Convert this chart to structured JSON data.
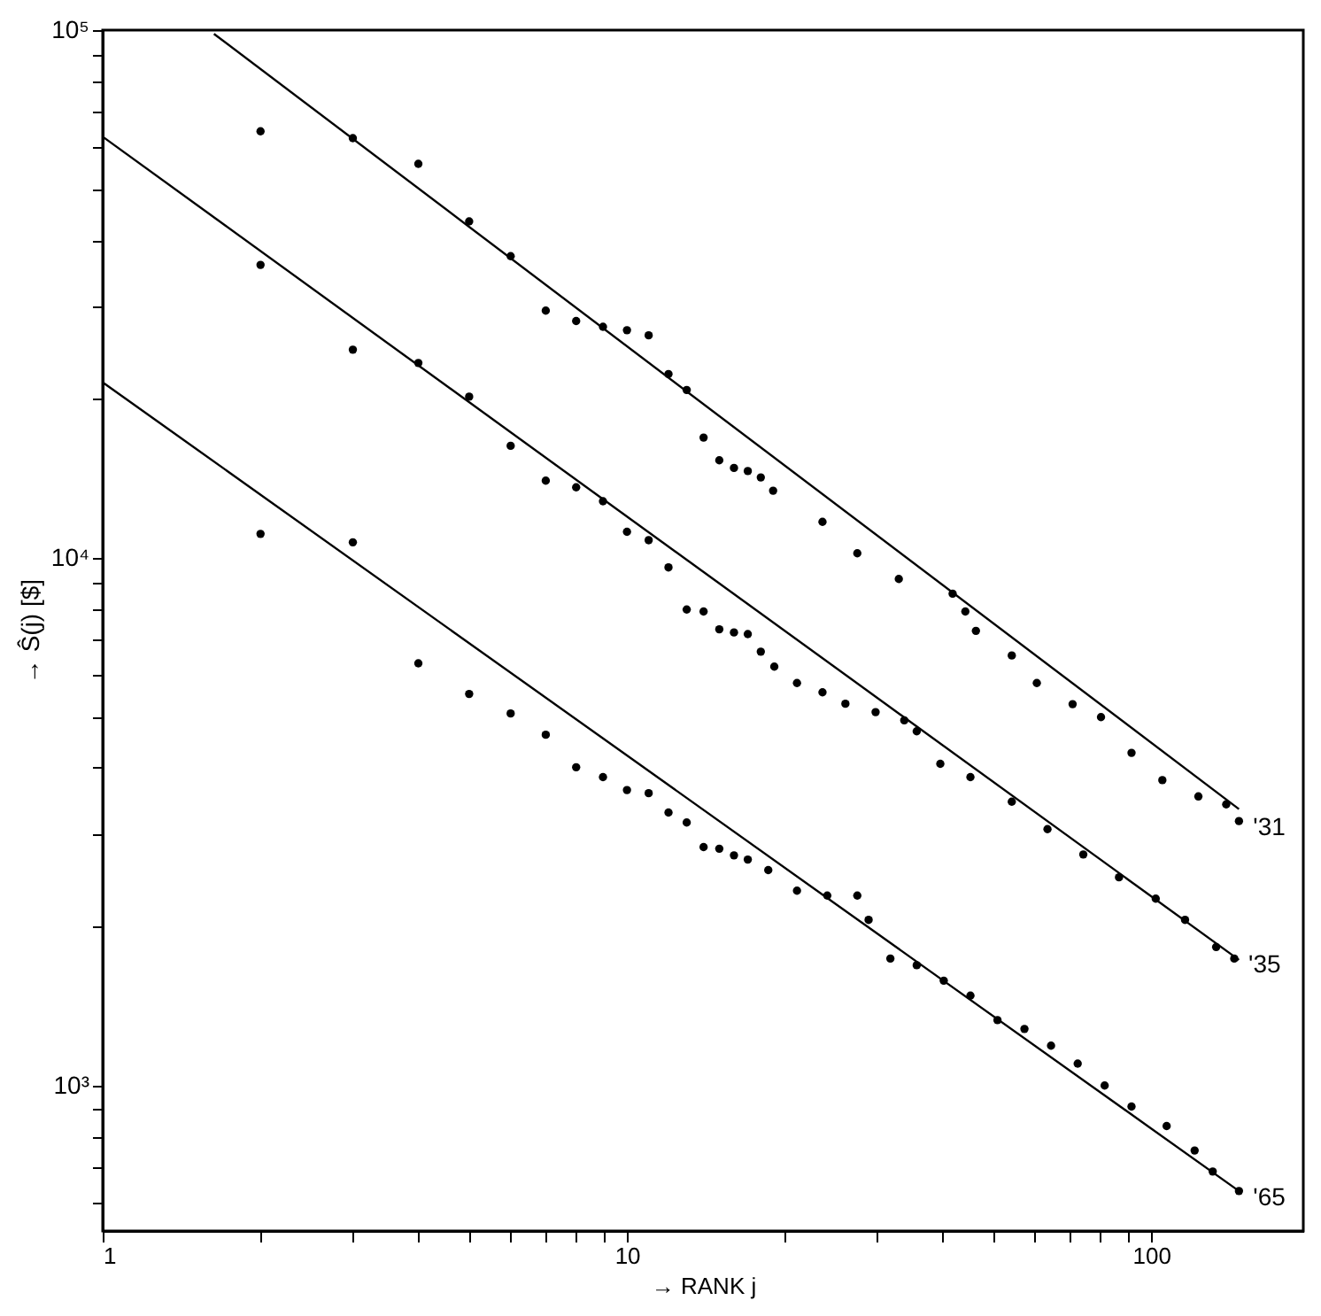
{
  "chart_data": {
    "type": "scatter",
    "xlabel": "→ RANK j",
    "ylabel": "→ Ŝ(j)   [$]",
    "log": "xy",
    "grid": false,
    "xlim": [
      1,
      195
    ],
    "ylim": [
      530,
      100000
    ],
    "xticks": [
      1,
      {
        "value": 2,
        "label": null
      },
      {
        "value": 3,
        "label": null
      },
      {
        "value": 4,
        "label": null
      },
      {
        "value": 5,
        "label": null
      },
      {
        "value": 6,
        "label": null
      },
      {
        "value": 7,
        "label": null
      },
      {
        "value": 8,
        "label": null
      },
      {
        "value": 9,
        "label": null
      },
      10,
      {
        "value": 20,
        "label": null
      },
      {
        "value": 30,
        "label": null
      },
      {
        "value": 40,
        "label": null
      },
      {
        "value": 50,
        "label": null
      },
      {
        "value": 60,
        "label": null
      },
      {
        "value": 70,
        "label": null
      },
      {
        "value": 80,
        "label": null
      },
      {
        "value": 90,
        "label": null
      },
      100
    ],
    "yticks": [
      {
        "value": 600,
        "label": null
      },
      {
        "value": 700,
        "label": null
      },
      {
        "value": 800,
        "label": null
      },
      {
        "value": 900,
        "label": null
      },
      {
        "value": 1000,
        "label": "10³"
      },
      {
        "value": 2000,
        "label": null
      },
      {
        "value": 3000,
        "label": null
      },
      {
        "value": 4000,
        "label": null
      },
      {
        "value": 5000,
        "label": null
      },
      {
        "value": 6000,
        "label": null
      },
      {
        "value": 7000,
        "label": null
      },
      {
        "value": 8000,
        "label": null
      },
      {
        "value": 9000,
        "label": null
      },
      {
        "value": 10000,
        "label": "10⁴"
      },
      {
        "value": 20000,
        "label": null
      },
      {
        "value": 30000,
        "label": null
      },
      {
        "value": 40000,
        "label": null
      },
      {
        "value": 50000,
        "label": null
      },
      {
        "value": 60000,
        "label": null
      },
      {
        "value": 70000,
        "label": null
      },
      {
        "value": 80000,
        "label": null
      },
      {
        "value": 90000,
        "label": null
      },
      {
        "value": 100000,
        "label": "10⁵"
      }
    ],
    "series": [
      {
        "marker": "circle",
        "name": "'31",
        "color": "#000000",
        "x": [
          2,
          3,
          4,
          5,
          6,
          7,
          8,
          9,
          10,
          11,
          12,
          13,
          14,
          15,
          16,
          17,
          18,
          19,
          23.6,
          27.5,
          33,
          41.8,
          44.2,
          46.3,
          54.2,
          60.5,
          70.8,
          80.2,
          91.7,
          105,
          123,
          139,
          147
        ],
        "values": [
          64300,
          62400,
          55800,
          43400,
          37300,
          29400,
          28100,
          27400,
          27000,
          26400,
          22300,
          20800,
          16900,
          15300,
          14800,
          14600,
          14200,
          13400,
          11700,
          10200,
          9120,
          8550,
          7910,
          7270,
          6530,
          5790,
          5280,
          4990,
          4270,
          3790,
          3530,
          3410,
          3170
        ]
      },
      {
        "marker": "circle",
        "name": "'35",
        "color": "#000000",
        "x": [
          2,
          3,
          4,
          5,
          6,
          7,
          8,
          9,
          10,
          11,
          12,
          13,
          14,
          15,
          16,
          17,
          18,
          19.1,
          21.1,
          23.6,
          26.1,
          29.8,
          33.8,
          35.7,
          39.6,
          45.2,
          54.2,
          63.4,
          74.2,
          86.8,
          102,
          116,
          133,
          144
        ],
        "values": [
          35900,
          24800,
          23400,
          20200,
          16300,
          14000,
          13600,
          12800,
          11200,
          10800,
          9590,
          7980,
          7910,
          7320,
          7220,
          7170,
          6640,
          6220,
          5790,
          5560,
          5290,
          5100,
          4920,
          4690,
          4070,
          3840,
          3450,
          3060,
          2740,
          2480,
          2260,
          2060,
          1830,
          1740
        ]
      },
      {
        "marker": "circle",
        "name": "'65",
        "color": "#000000",
        "x": [
          2,
          3,
          4,
          5,
          6,
          7,
          8,
          9,
          10,
          11,
          12,
          13,
          14,
          15,
          16,
          17,
          18.6,
          21.1,
          24.1,
          27.5,
          28.9,
          31.8,
          35.7,
          40.2,
          45.2,
          50.9,
          57.3,
          64.4,
          72.4,
          81.5,
          91.7,
          107,
          121,
          131,
          147
        ],
        "values": [
          11100,
          10700,
          6310,
          5520,
          5070,
          4620,
          4010,
          3840,
          3630,
          3580,
          3290,
          3150,
          2830,
          2810,
          2730,
          2680,
          2560,
          2340,
          2290,
          2290,
          2060,
          1740,
          1690,
          1580,
          1480,
          1330,
          1280,
          1190,
          1100,
          1000,
          912,
          838,
          753,
          687,
          631
        ]
      },
      {
        "type": "line",
        "color": "#000000",
        "x": [
          1.63,
          147
        ],
        "values": [
          98400,
          3340
        ]
      },
      {
        "type": "line",
        "color": "#000000",
        "x": [
          1,
          147
        ],
        "values": [
          62800,
          1730
        ]
      },
      {
        "type": "line",
        "color": "#000000",
        "x": [
          1,
          147
        ],
        "values": [
          21500,
          631
        ]
      }
    ]
  }
}
